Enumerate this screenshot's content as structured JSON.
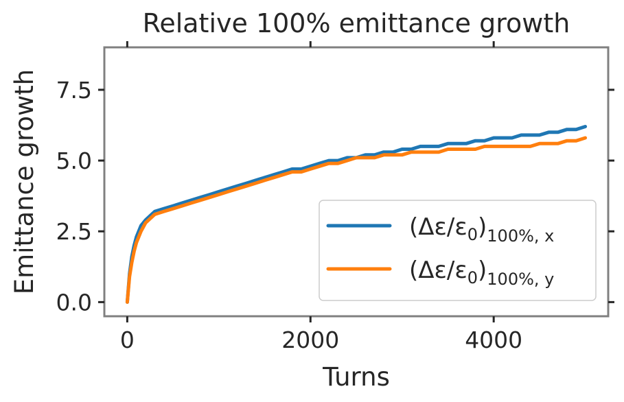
{
  "chart_data": {
    "type": "line",
    "title": "Relative 100% emittance growth",
    "xlabel": "Turns",
    "ylabel": "Emittance growth",
    "xlim": [
      -250,
      5250
    ],
    "ylim": [
      -0.5,
      9.0
    ],
    "xticks": [
      0,
      2000,
      4000
    ],
    "xtick_labels": [
      "0",
      "2000",
      "4000"
    ],
    "yticks": [
      0.0,
      2.5,
      5.0,
      7.5
    ],
    "ytick_labels": [
      "0.0",
      "2.5",
      "5.0",
      "7.5"
    ],
    "grid": false,
    "legend_position": "lower-right",
    "series": [
      {
        "name_main": "(Δε/ε",
        "name_zero": "0",
        "name_close": ")",
        "name_sub": "100%, x",
        "color": "#1f77b4",
        "x": [
          0,
          25,
          50,
          75,
          100,
          150,
          200,
          300,
          400,
          500,
          600,
          700,
          800,
          900,
          1000,
          1100,
          1200,
          1300,
          1400,
          1500,
          1600,
          1700,
          1800,
          1900,
          2000,
          2100,
          2200,
          2300,
          2400,
          2500,
          2600,
          2700,
          2800,
          2900,
          3000,
          3100,
          3200,
          3300,
          3400,
          3500,
          3600,
          3700,
          3800,
          3900,
          4000,
          4100,
          4200,
          4300,
          4400,
          4500,
          4600,
          4700,
          4800,
          4900,
          5000
        ],
        "y": [
          0.0,
          1.0,
          1.6,
          2.0,
          2.3,
          2.7,
          2.9,
          3.2,
          3.3,
          3.4,
          3.5,
          3.6,
          3.7,
          3.8,
          3.9,
          4.0,
          4.1,
          4.2,
          4.3,
          4.4,
          4.5,
          4.6,
          4.7,
          4.7,
          4.8,
          4.9,
          5.0,
          5.0,
          5.1,
          5.1,
          5.2,
          5.2,
          5.3,
          5.3,
          5.4,
          5.4,
          5.5,
          5.5,
          5.5,
          5.6,
          5.6,
          5.6,
          5.7,
          5.7,
          5.8,
          5.8,
          5.8,
          5.9,
          5.9,
          5.9,
          6.0,
          6.0,
          6.1,
          6.1,
          6.2
        ]
      },
      {
        "name_main": "(Δε/ε",
        "name_zero": "0",
        "name_close": ")",
        "name_sub": "100%, y",
        "color": "#ff7f0e",
        "x": [
          0,
          25,
          50,
          75,
          100,
          150,
          200,
          300,
          400,
          500,
          600,
          700,
          800,
          900,
          1000,
          1100,
          1200,
          1300,
          1400,
          1500,
          1600,
          1700,
          1800,
          1900,
          2000,
          2100,
          2200,
          2300,
          2400,
          2500,
          2600,
          2700,
          2800,
          2900,
          3000,
          3100,
          3200,
          3300,
          3400,
          3500,
          3600,
          3700,
          3800,
          3900,
          4000,
          4100,
          4200,
          4300,
          4400,
          4500,
          4600,
          4700,
          4800,
          4900,
          5000
        ],
        "y": [
          0.0,
          0.9,
          1.4,
          1.8,
          2.1,
          2.5,
          2.8,
          3.1,
          3.2,
          3.3,
          3.4,
          3.5,
          3.6,
          3.7,
          3.8,
          3.9,
          4.0,
          4.1,
          4.2,
          4.3,
          4.4,
          4.5,
          4.6,
          4.6,
          4.7,
          4.8,
          4.9,
          4.9,
          5.0,
          5.1,
          5.1,
          5.1,
          5.2,
          5.2,
          5.2,
          5.3,
          5.3,
          5.3,
          5.3,
          5.4,
          5.4,
          5.4,
          5.4,
          5.5,
          5.5,
          5.5,
          5.5,
          5.5,
          5.5,
          5.6,
          5.6,
          5.6,
          5.7,
          5.7,
          5.8
        ]
      }
    ]
  }
}
